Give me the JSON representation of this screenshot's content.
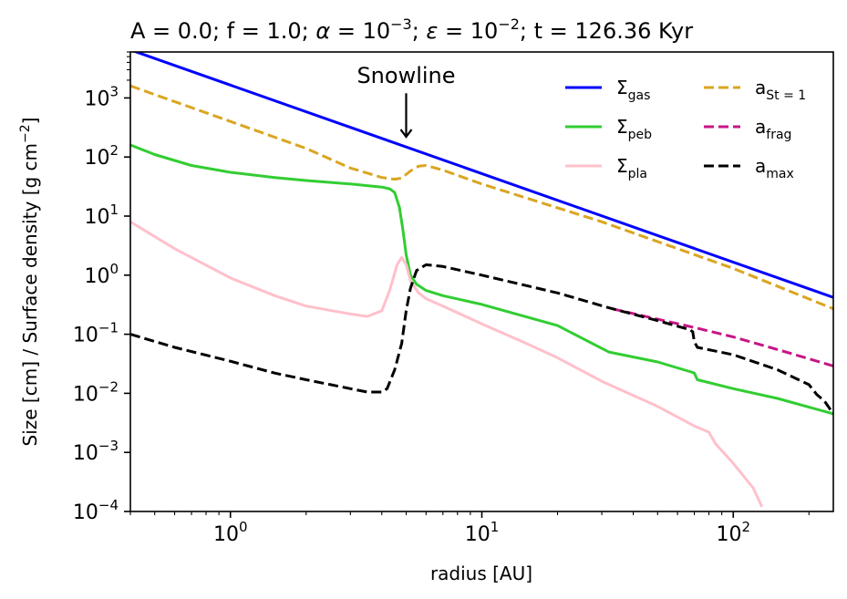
{
  "chart_data": {
    "type": "line",
    "title_parts": {
      "p1": "A = 0.0; f = 1.0; ",
      "alpha": "α",
      "p2": " = 10",
      "alpha_exp": "−3",
      "p3": "; ",
      "eps": "ε",
      "p4": " = 10",
      "eps_exp": "−2",
      "p5": "; t = 126.36 Kyr"
    },
    "xlabel": "radius [AU]",
    "ylabel": {
      "main": "Size [cm] / Surface density [g cm",
      "exp": "−2",
      "close": "]"
    },
    "xscale": "log",
    "yscale": "log",
    "xlim": [
      0.4,
      250
    ],
    "ylim": [
      0.0001,
      6000
    ],
    "x_ticks": [
      {
        "value": 1,
        "base": "10",
        "exp": "0"
      },
      {
        "value": 10,
        "base": "10",
        "exp": "1"
      },
      {
        "value": 100,
        "base": "10",
        "exp": "2"
      }
    ],
    "y_ticks": [
      {
        "value": 0.0001,
        "base": "10",
        "exp": "−4"
      },
      {
        "value": 0.001,
        "base": "10",
        "exp": "−3"
      },
      {
        "value": 0.01,
        "base": "10",
        "exp": "−2"
      },
      {
        "value": 0.1,
        "base": "10",
        "exp": "−1"
      },
      {
        "value": 1,
        "base": "10",
        "exp": "0"
      },
      {
        "value": 10,
        "base": "10",
        "exp": "1"
      },
      {
        "value": 100,
        "base": "10",
        "exp": "2"
      },
      {
        "value": 1000,
        "base": "10",
        "exp": "3"
      }
    ],
    "annotation": {
      "text": "Snowline",
      "x": 5.0,
      "y_text": 1800,
      "y_arrow_start": 1200,
      "y_arrow_end": 220
    },
    "legend_position": "top-right",
    "series": [
      {
        "key": "sgas",
        "label_main": "Σ",
        "label_sub": "gas",
        "color": "#0000ff",
        "dash": "solid",
        "x": [
          0.4,
          250
        ],
        "y": [
          6500,
          0.42
        ]
      },
      {
        "key": "speb",
        "label_main": "Σ",
        "label_sub": "peb",
        "color": "#32cd32",
        "dash": "solid",
        "x": [
          0.4,
          0.5,
          0.7,
          1.0,
          1.5,
          2.0,
          3.0,
          4.0,
          4.3,
          4.5,
          4.7,
          4.85,
          5.0,
          5.2,
          5.5,
          6.0,
          7.0,
          10,
          20,
          32,
          50,
          68,
          70,
          72,
          100,
          150,
          250
        ],
        "y": [
          160,
          110,
          72,
          55,
          45,
          40,
          35,
          31,
          29,
          25,
          14,
          6.0,
          2.2,
          1.0,
          0.7,
          0.55,
          0.45,
          0.32,
          0.14,
          0.05,
          0.034,
          0.023,
          0.022,
          0.017,
          0.012,
          0.0082,
          0.0045
        ]
      },
      {
        "key": "spla",
        "label_main": "Σ",
        "label_sub": "pla",
        "color": "#ffc0cb",
        "dash": "solid",
        "x": [
          0.4,
          0.6,
          1.0,
          1.5,
          2.0,
          3.0,
          3.5,
          4.0,
          4.3,
          4.6,
          4.8,
          5.0,
          5.2,
          5.6,
          6.0,
          7.0,
          10,
          15,
          20,
          30,
          50,
          70,
          80,
          85,
          100,
          120,
          130
        ],
        "y": [
          8,
          2.8,
          0.9,
          0.45,
          0.3,
          0.22,
          0.2,
          0.25,
          0.55,
          1.5,
          2.0,
          1.5,
          0.8,
          0.5,
          0.4,
          0.3,
          0.15,
          0.07,
          0.04,
          0.016,
          0.006,
          0.0028,
          0.0022,
          0.0014,
          0.00065,
          0.00025,
          0.00012
        ]
      },
      {
        "key": "ast1",
        "label_main": "a",
        "label_sub": "St = 1",
        "color": "#daa520",
        "dash": "dashed",
        "x": [
          0.4,
          1.0,
          2.0,
          3.0,
          4.0,
          4.5,
          4.8,
          5.2,
          5.6,
          6.0,
          7.0,
          10,
          30,
          100,
          250
        ],
        "y": [
          1600,
          400,
          140,
          65,
          45,
          42,
          44,
          58,
          70,
          72,
          60,
          35,
          8,
          1.3,
          0.27
        ]
      },
      {
        "key": "afrag",
        "label_main": "a",
        "label_sub": "frag",
        "color": "#c71585",
        "dash": "dashed",
        "x": [
          33,
          50,
          70,
          100,
          150,
          250
        ],
        "y": [
          0.27,
          0.18,
          0.13,
          0.09,
          0.055,
          0.029
        ]
      },
      {
        "key": "amax",
        "label_main": "a",
        "label_sub": "max",
        "color": "#000000",
        "dash": "dashed",
        "x": [
          0.4,
          0.6,
          1.0,
          1.5,
          2.0,
          3.0,
          3.5,
          4.0,
          4.2,
          4.5,
          4.8,
          5.0,
          5.2,
          5.5,
          6.0,
          7.0,
          10,
          20,
          32,
          50,
          67,
          69,
          70,
          72,
          100,
          150,
          200,
          215,
          230,
          250
        ],
        "y": [
          0.1,
          0.06,
          0.035,
          0.022,
          0.017,
          0.012,
          0.0105,
          0.0105,
          0.012,
          0.025,
          0.07,
          0.25,
          0.6,
          1.2,
          1.5,
          1.4,
          1.0,
          0.5,
          0.28,
          0.17,
          0.12,
          0.11,
          0.075,
          0.06,
          0.045,
          0.025,
          0.014,
          0.0095,
          0.0075,
          0.0045
        ]
      }
    ]
  }
}
